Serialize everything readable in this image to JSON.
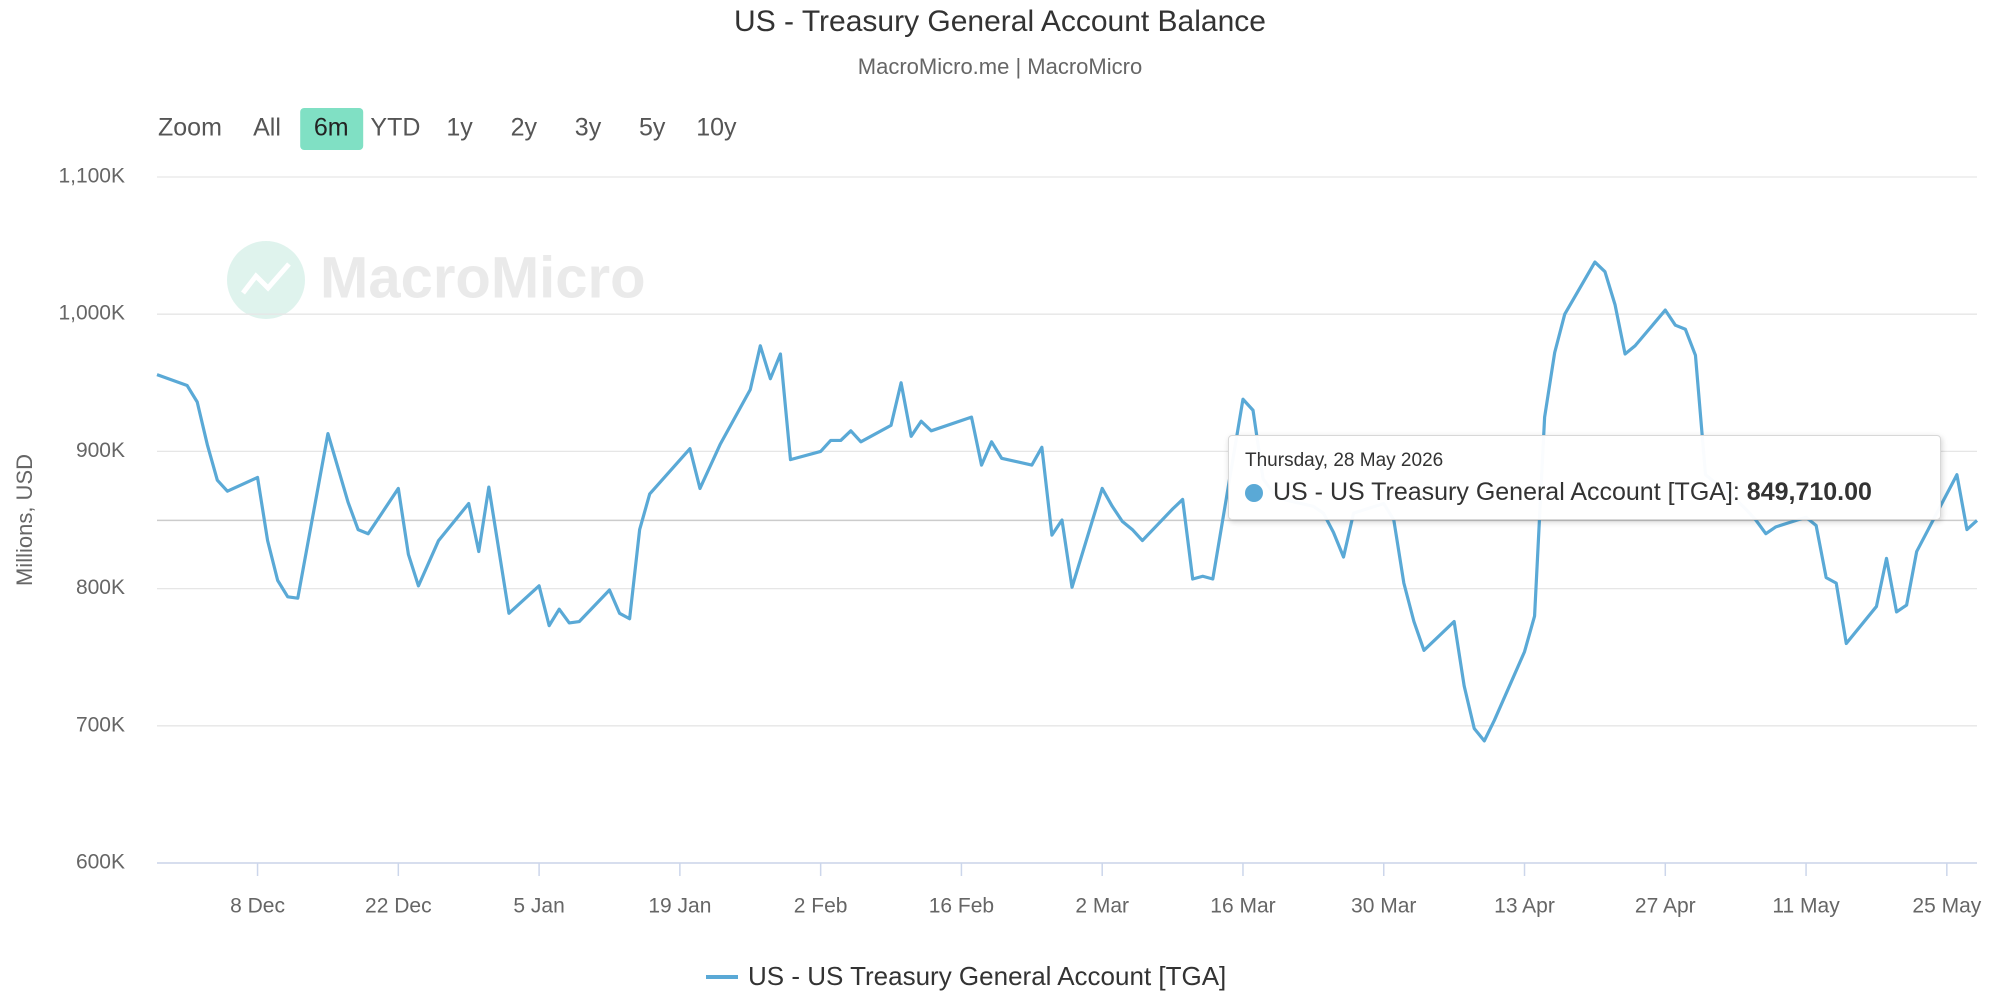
{
  "chart_data": {
    "type": "line",
    "title": "US - Treasury General Account Balance",
    "subtitle": "MacroMicro.me | MacroMicro",
    "watermark": "MacroMicro",
    "range_selector": {
      "label": "Zoom",
      "buttons": [
        "All",
        "6m",
        "YTD",
        "1y",
        "2y",
        "3y",
        "5y",
        "10y"
      ],
      "selected": "6m"
    },
    "y_label": "Millions, USD",
    "x": [
      "28 Nov",
      "1 Dec",
      "2 Dec",
      "3 Dec",
      "4 Dec",
      "5 Dec",
      "8 Dec",
      "9 Dec",
      "10 Dec",
      "11 Dec",
      "12 Dec",
      "15 Dec",
      "16 Dec",
      "17 Dec",
      "18 Dec",
      "19 Dec",
      "22 Dec",
      "23 Dec",
      "24 Dec",
      "26 Dec",
      "29 Dec",
      "30 Dec",
      "31 Dec",
      "2 Jan",
      "5 Jan",
      "6 Jan",
      "7 Jan",
      "8 Jan",
      "9 Jan",
      "12 Jan",
      "13 Jan",
      "14 Jan",
      "15 Jan",
      "16 Jan",
      "20 Jan",
      "21 Jan",
      "22 Jan",
      "23 Jan",
      "26 Jan",
      "27 Jan",
      "28 Jan",
      "29 Jan",
      "30 Jan",
      "2 Feb",
      "3 Feb",
      "4 Feb",
      "5 Feb",
      "6 Feb",
      "9 Feb",
      "10 Feb",
      "11 Feb",
      "12 Feb",
      "13 Feb",
      "17 Feb",
      "18 Feb",
      "19 Feb",
      "20 Feb",
      "23 Feb",
      "24 Feb",
      "25 Feb",
      "26 Feb",
      "27 Feb",
      "2 Mar",
      "3 Mar",
      "4 Mar",
      "5 Mar",
      "6 Mar",
      "9 Mar",
      "10 Mar",
      "11 Mar",
      "12 Mar",
      "13 Mar",
      "16 Mar",
      "17 Mar",
      "18 Mar",
      "19 Mar",
      "20 Mar",
      "23 Mar",
      "24 Mar",
      "25 Mar",
      "26 Mar",
      "27 Mar",
      "30 Mar",
      "31 Mar",
      "1 Apr",
      "2 Apr",
      "3 Apr",
      "6 Apr",
      "7 Apr",
      "8 Apr",
      "9 Apr",
      "10 Apr",
      "13 Apr",
      "14 Apr",
      "15 Apr",
      "16 Apr",
      "17 Apr",
      "20 Apr",
      "21 Apr",
      "22 Apr",
      "23 Apr",
      "24 Apr",
      "27 Apr",
      "28 Apr",
      "29 Apr",
      "30 Apr",
      "1 May",
      "4 May",
      "5 May",
      "6 May",
      "7 May",
      "8 May",
      "11 May",
      "12 May",
      "13 May",
      "14 May",
      "15 May",
      "18 May",
      "19 May",
      "20 May",
      "21 May",
      "22 May",
      "26 May",
      "27 May",
      "28 May"
    ],
    "series": [
      {
        "name": "US - US Treasury General Account [TGA]",
        "color": "#5aa9d6",
        "values": [
          956000,
          948000,
          936000,
          905000,
          879000,
          871000,
          881000,
          835000,
          806000,
          794000,
          793000,
          913000,
          888000,
          863000,
          843000,
          840000,
          873000,
          825000,
          802000,
          835000,
          862000,
          827000,
          874000,
          782000,
          802000,
          773000,
          785000,
          775000,
          776000,
          799000,
          782000,
          778000,
          843000,
          869000,
          902000,
          873000,
          889000,
          905000,
          945000,
          977000,
          953000,
          971000,
          894000,
          900000,
          908000,
          908000,
          915000,
          907000,
          919000,
          950000,
          911000,
          922000,
          915000,
          925000,
          890000,
          907000,
          895000,
          890000,
          903000,
          839000,
          850000,
          801000,
          873000,
          860000,
          849000,
          843000,
          835000,
          858000,
          865000,
          807000,
          809000,
          807000,
          938000,
          930000,
          880000,
          870000,
          865000,
          860000,
          855000,
          841000,
          823000,
          855000,
          862000,
          850000,
          804000,
          776000,
          755000,
          776000,
          729000,
          698000,
          689000,
          704000,
          754000,
          780000,
          925000,
          972000,
          1000000,
          1038000,
          1031000,
          1007000,
          971000,
          977000,
          1003000,
          992000,
          989000,
          970000,
          883000,
          865000,
          858000,
          850000,
          840000,
          845000,
          852000,
          846000,
          808000,
          804000,
          760000,
          787000,
          822000,
          783000,
          788000,
          827000,
          883000,
          843000,
          849710
        ],
        "value_labels": [
          null,
          null,
          null,
          null,
          null,
          null,
          null,
          null,
          null,
          null,
          null,
          null,
          null,
          null,
          null,
          null,
          null,
          null,
          null,
          null,
          null,
          null,
          null,
          null,
          null,
          null,
          null,
          null,
          null,
          null,
          null,
          null,
          null,
          null,
          null,
          null,
          null,
          null,
          null,
          null,
          null,
          null,
          null,
          null,
          null,
          null,
          null,
          null,
          null,
          null,
          null,
          null,
          null,
          null,
          null,
          null,
          null,
          null,
          null,
          null,
          null,
          null,
          null,
          null,
          null,
          null,
          null,
          null,
          null,
          null,
          null,
          null,
          null,
          null,
          null,
          null,
          null,
          null,
          null,
          null,
          null,
          null,
          null,
          null,
          null,
          null,
          null,
          null,
          null,
          null,
          null,
          null,
          null,
          null,
          null,
          null,
          null,
          null,
          null,
          null,
          null,
          null,
          null,
          null,
          null,
          null,
          null,
          null,
          null,
          null,
          null,
          null,
          null,
          null,
          null,
          null,
          null,
          null,
          null,
          null,
          null,
          null,
          null,
          null,
          "849,710.00"
        ]
      }
    ],
    "tooltip": {
      "title": "Thursday, 28 May 2026"
    },
    "xlim": [
      "28 Nov",
      "28 May"
    ],
    "xticks": [
      "8 Dec",
      "22 Dec",
      "5 Jan",
      "19 Jan",
      "2 Feb",
      "16 Feb",
      "2 Mar",
      "16 Mar",
      "30 Mar",
      "13 Apr",
      "27 Apr",
      "11 May",
      "25 May"
    ],
    "ylim": [
      600000,
      1100000
    ],
    "yticks": [
      {
        "value": 600000,
        "label": "600K"
      },
      {
        "value": 700000,
        "label": "700K"
      },
      {
        "value": 800000,
        "label": "800K"
      },
      {
        "value": 900000,
        "label": "900K"
      },
      {
        "value": 1000000,
        "label": "1,000K"
      },
      {
        "value": 1100000,
        "label": "1,100K"
      }
    ],
    "grid": true
  }
}
